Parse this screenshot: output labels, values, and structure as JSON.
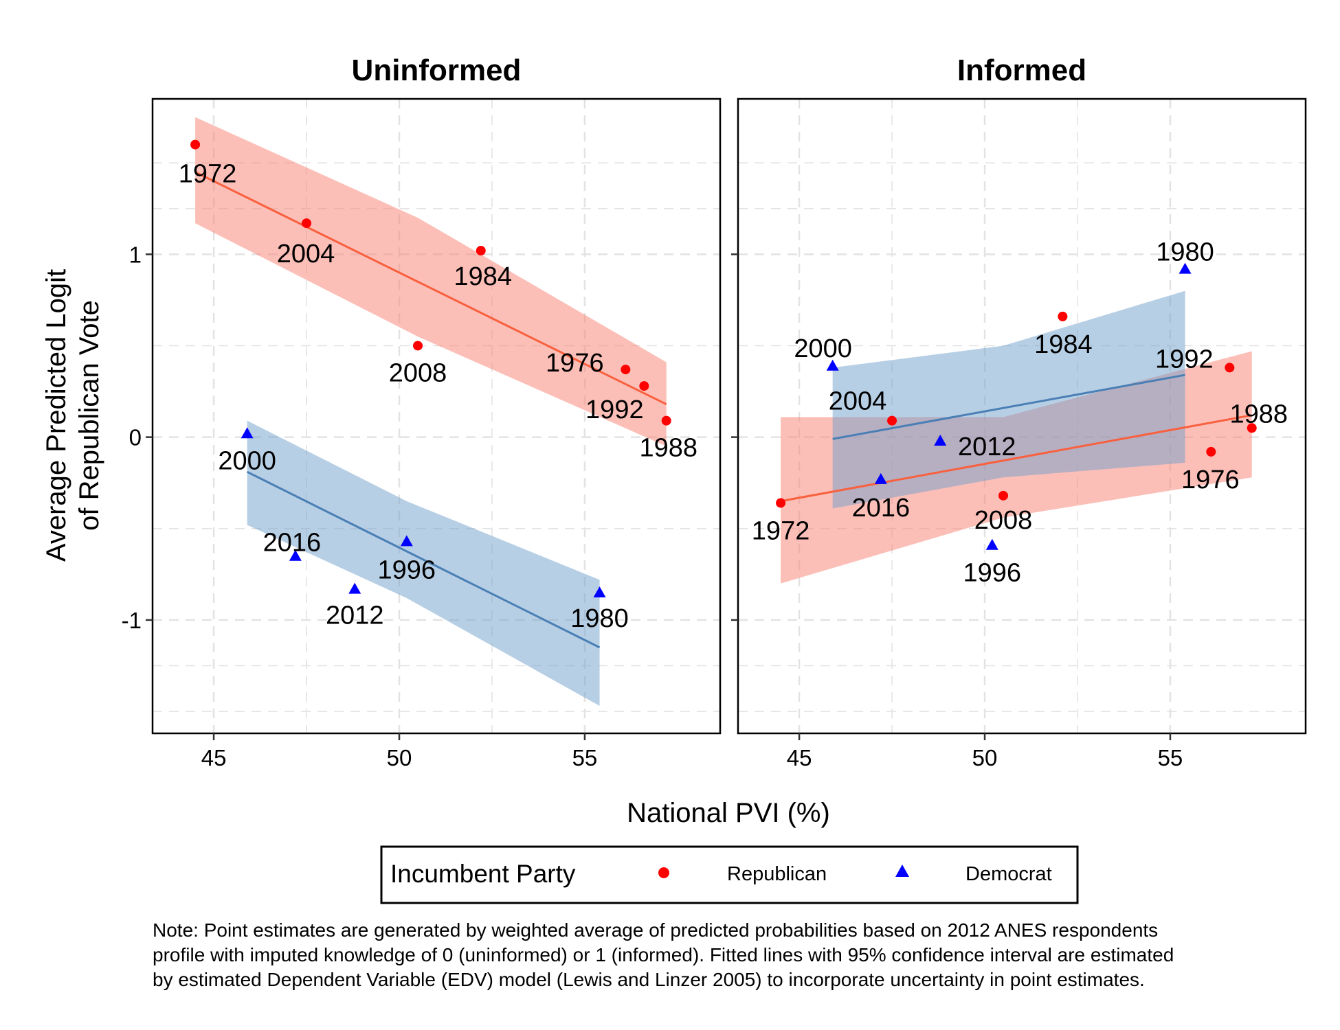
{
  "chart_data": {
    "type": "scatter",
    "facets": [
      "Uninformed",
      "Informed"
    ],
    "xlabel": "National PVI (%)",
    "ylabel_lines": [
      "Average Predicted Logit",
      "of Republican Vote"
    ],
    "x_ticks": [
      45,
      50,
      55
    ],
    "y_ticks": [
      -1,
      0,
      1
    ],
    "x_tick_labels": [
      "45",
      "50",
      "55"
    ],
    "y_tick_labels": [
      "-1",
      "0",
      "1"
    ],
    "xlim": [
      43.35,
      58.65
    ],
    "ylim": [
      -1.62,
      1.85
    ],
    "grid": true,
    "legend": {
      "title": "Incumbent Party",
      "position": "bottom",
      "entries": [
        {
          "label": "Republican",
          "color": "#ff0000",
          "shape": "circle"
        },
        {
          "label": "Democrat",
          "color": "#0000ff",
          "shape": "triangle"
        }
      ]
    },
    "colors": {
      "republican_band": "#fa8072",
      "republican_line": "#f8603e",
      "democrat_band": "#6fa0cc",
      "democrat_line": "#4a7fb5"
    },
    "panels": [
      {
        "title": "Uninformed",
        "series": [
          {
            "name": "Republican",
            "points": [
              {
                "year": "1972",
                "x": 44.5,
                "y": 1.6
              },
              {
                "year": "2004",
                "x": 47.5,
                "y": 1.17
              },
              {
                "year": "1984",
                "x": 52.2,
                "y": 1.02
              },
              {
                "year": "2008",
                "x": 50.5,
                "y": 0.5
              },
              {
                "year": "1976",
                "x": 56.1,
                "y": 0.37
              },
              {
                "year": "1992",
                "x": 56.6,
                "y": 0.28
              },
              {
                "year": "1988",
                "x": 57.2,
                "y": 0.09
              }
            ],
            "fit": {
              "x": [
                44.5,
                57.2
              ],
              "y": [
                1.45,
                0.18
              ]
            },
            "ci": {
              "x": [
                44.5,
                50.5,
                57.2
              ],
              "upper": [
                1.75,
                1.2,
                0.41
              ],
              "lower": [
                1.17,
                0.55,
                -0.05
              ]
            }
          },
          {
            "name": "Democrat",
            "points": [
              {
                "year": "2000",
                "x": 45.9,
                "y": 0.02
              },
              {
                "year": "2016",
                "x": 47.2,
                "y": -0.65
              },
              {
                "year": "2012",
                "x": 48.8,
                "y": -0.83
              },
              {
                "year": "1996",
                "x": 50.2,
                "y": -0.57
              },
              {
                "year": "1980",
                "x": 55.4,
                "y": -0.85
              }
            ],
            "fit": {
              "x": [
                45.9,
                55.4
              ],
              "y": [
                -0.19,
                -1.15
              ]
            },
            "ci": {
              "x": [
                45.9,
                50.2,
                55.4
              ],
              "upper": [
                0.09,
                -0.35,
                -0.78
              ],
              "lower": [
                -0.48,
                -0.88,
                -1.47
              ]
            }
          }
        ]
      },
      {
        "title": "Informed",
        "series": [
          {
            "name": "Republican",
            "points": [
              {
                "year": "1972",
                "x": 44.5,
                "y": -0.36
              },
              {
                "year": "2004",
                "x": 47.5,
                "y": 0.09
              },
              {
                "year": "1984",
                "x": 52.1,
                "y": 0.66
              },
              {
                "year": "2008",
                "x": 50.5,
                "y": -0.32
              },
              {
                "year": "1976",
                "x": 56.1,
                "y": -0.08
              },
              {
                "year": "1992",
                "x": 56.6,
                "y": 0.38
              },
              {
                "year": "1988",
                "x": 57.2,
                "y": 0.05
              }
            ],
            "fit": {
              "x": [
                44.5,
                57.2
              ],
              "y": [
                -0.35,
                0.12
              ]
            },
            "ci": {
              "x": [
                44.5,
                50.5,
                57.2
              ],
              "upper": [
                0.11,
                0.11,
                0.47
              ],
              "lower": [
                -0.8,
                -0.44,
                -0.22
              ]
            }
          },
          {
            "name": "Democrat",
            "points": [
              {
                "year": "2000",
                "x": 45.9,
                "y": 0.39
              },
              {
                "year": "2016",
                "x": 47.2,
                "y": -0.23
              },
              {
                "year": "2012",
                "x": 48.8,
                "y": -0.02
              },
              {
                "year": "1996",
                "x": 50.2,
                "y": -0.59
              },
              {
                "year": "1980",
                "x": 55.4,
                "y": 0.92
              }
            ],
            "fit": {
              "x": [
                45.9,
                55.4
              ],
              "y": [
                -0.01,
                0.34
              ]
            },
            "ci": {
              "x": [
                45.9,
                50.5,
                55.4
              ],
              "upper": [
                0.38,
                0.5,
                0.8
              ],
              "lower": [
                -0.39,
                -0.22,
                -0.14
              ]
            }
          }
        ]
      }
    ]
  },
  "note_lines": [
    "Note: Point estimates are generated by weighted average of predicted probabilities based on 2012 ANES respondents",
    "profile with imputed knowledge of 0 (uninformed) or 1 (informed). Fitted lines with 95% confidence interval are estimated",
    "by estimated Dependent Variable (EDV) model (Lewis and Linzer 2005) to incorporate uncertainty in point estimates."
  ]
}
